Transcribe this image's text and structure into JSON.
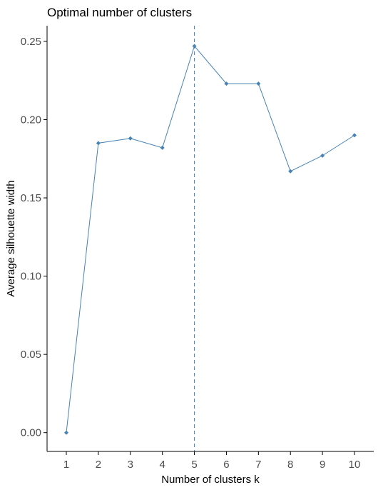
{
  "chart_data": {
    "type": "line",
    "title": "Optimal number of clusters",
    "xlabel": "Number of clusters k",
    "ylabel": "Average silhouette width",
    "categories": [
      "1",
      "2",
      "3",
      "4",
      "5",
      "6",
      "7",
      "8",
      "9",
      "10"
    ],
    "series": [
      {
        "values": [
          0.0,
          0.185,
          0.188,
          0.182,
          0.247,
          0.223,
          0.223,
          0.167,
          0.177,
          0.19
        ]
      }
    ],
    "ylim": [
      -0.012,
      0.26
    ],
    "yticks": [
      0.0,
      0.05,
      0.1,
      0.15,
      0.2,
      0.25
    ],
    "ytick_labels": [
      "0.00",
      "0.05",
      "0.10",
      "0.15",
      "0.20",
      "0.25"
    ],
    "reference_line": {
      "axis": "x",
      "value": "5",
      "style": "dashed"
    },
    "grid": false,
    "legend": "none",
    "colors": {
      "line": "#4682b4",
      "point": "#4682b4",
      "reference_line": "#4682b4",
      "axis": "#000000",
      "tick_text": "#4d4d4d"
    }
  }
}
